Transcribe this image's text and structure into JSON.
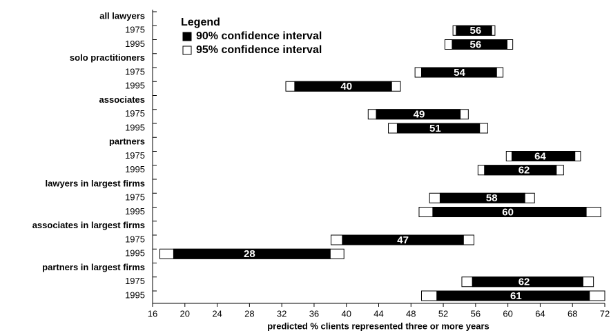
{
  "chart_data": {
    "type": "interval",
    "xlabel": "predicted % clients represented three or more years",
    "xlim": [
      16,
      72
    ],
    "xticks": [
      16,
      20,
      24,
      28,
      32,
      36,
      40,
      44,
      48,
      52,
      56,
      60,
      64,
      68,
      72
    ],
    "legend_title": "Legend",
    "legend": "upper left",
    "series": [
      {
        "name": "90% confidence interval",
        "color": "#000000"
      },
      {
        "name": "95% confidence interval",
        "color": "#ffffff"
      }
    ],
    "groups": [
      {
        "name": "all lawyers",
        "rows": [
          {
            "label": "1975",
            "value": 56,
            "ci90": [
              53.6,
              58.0
            ],
            "ci95": [
              53.2,
              58.4
            ]
          },
          {
            "label": "1995",
            "value": 56,
            "ci90": [
              53.1,
              59.9
            ],
            "ci95": [
              52.2,
              60.6
            ]
          }
        ]
      },
      {
        "name": "solo practitioners",
        "rows": [
          {
            "label": "1975",
            "value": 54,
            "ci90": [
              49.3,
              58.6
            ],
            "ci95": [
              48.5,
              59.4
            ]
          },
          {
            "label": "1995",
            "value": 40,
            "ci90": [
              33.6,
              45.6
            ],
            "ci95": [
              32.5,
              46.7
            ]
          }
        ]
      },
      {
        "name": "associates",
        "rows": [
          {
            "label": "1975",
            "value": 49,
            "ci90": [
              43.7,
              54.1
            ],
            "ci95": [
              42.7,
              55.1
            ]
          },
          {
            "label": "1995",
            "value": 51,
            "ci90": [
              46.3,
              56.5
            ],
            "ci95": [
              45.2,
              57.5
            ]
          }
        ]
      },
      {
        "name": "partners",
        "rows": [
          {
            "label": "1975",
            "value": 64,
            "ci90": [
              60.5,
              68.3
            ],
            "ci95": [
              59.8,
              69.0
            ]
          },
          {
            "label": "1995",
            "value": 62,
            "ci90": [
              57.1,
              66.0
            ],
            "ci95": [
              56.3,
              66.9
            ]
          }
        ]
      },
      {
        "name": "lawyers in largest firms",
        "rows": [
          {
            "label": "1975",
            "value": 58,
            "ci90": [
              51.6,
              62.1
            ],
            "ci95": [
              50.3,
              63.3
            ]
          },
          {
            "label": "1995",
            "value": 60,
            "ci90": [
              50.7,
              69.7
            ],
            "ci95": [
              49.0,
              71.5
            ]
          }
        ]
      },
      {
        "name": "associates in largest firms",
        "rows": [
          {
            "label": "1975",
            "value": 47,
            "ci90": [
              39.5,
              54.5
            ],
            "ci95": [
              38.1,
              55.8
            ]
          },
          {
            "label": "1995",
            "value": 28,
            "ci90": [
              18.6,
              38.0
            ],
            "ci95": [
              16.9,
              39.7
            ]
          }
        ]
      },
      {
        "name": "partners in largest firms",
        "rows": [
          {
            "label": "1975",
            "value": 62,
            "ci90": [
              55.6,
              69.3
            ],
            "ci95": [
              54.3,
              70.6
            ]
          },
          {
            "label": "1995",
            "value": 61,
            "ci90": [
              51.2,
              70.1
            ],
            "ci95": [
              49.3,
              72.0
            ]
          }
        ]
      }
    ]
  }
}
